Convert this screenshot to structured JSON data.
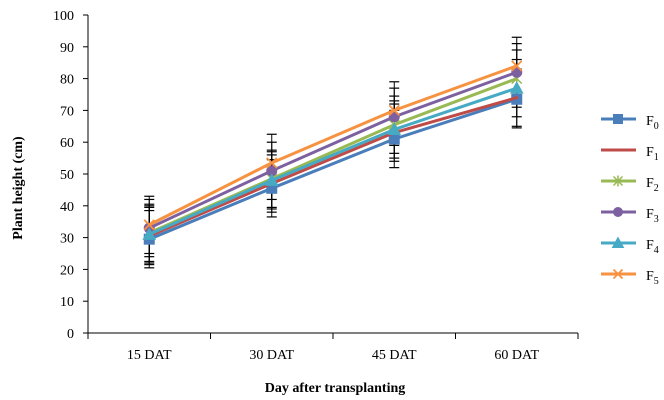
{
  "chart_data": {
    "type": "line",
    "xlabel": "Day after transplanting",
    "ylabel": "Plant height (cm)",
    "categories": [
      "15 DAT",
      "30 DAT",
      "45 DAT",
      "60 DAT"
    ],
    "ylim": [
      0,
      100
    ],
    "yticks": [
      0,
      10,
      20,
      30,
      40,
      50,
      60,
      70,
      80,
      90,
      100
    ],
    "grid": false,
    "legend_position": "right",
    "error_bars": true,
    "series": [
      {
        "name": "F0",
        "label_base": "F",
        "label_sub": "0",
        "color": "#4a7ebb",
        "marker": "square",
        "values": [
          29.5,
          45.5,
          61.0,
          73.5
        ],
        "errors": [
          9,
          9,
          9,
          9
        ]
      },
      {
        "name": "F1",
        "label_base": "F",
        "label_sub": "1",
        "color": "#be4b48",
        "marker": "none",
        "values": [
          30.5,
          47.0,
          63.0,
          74.0
        ],
        "errors": [
          9,
          9,
          9,
          9
        ]
      },
      {
        "name": "F2",
        "label_base": "F",
        "label_sub": "2",
        "color": "#98b954",
        "marker": "star",
        "values": [
          31.5,
          48.5,
          65.5,
          80.0
        ],
        "errors": [
          9,
          9,
          9,
          9
        ]
      },
      {
        "name": "F3",
        "label_base": "F",
        "label_sub": "3",
        "color": "#7d60a0",
        "marker": "circle",
        "values": [
          33.0,
          51.0,
          68.0,
          82.0
        ],
        "errors": [
          9,
          9,
          9,
          9
        ]
      },
      {
        "name": "F4",
        "label_base": "F",
        "label_sub": "4",
        "color": "#46aac4",
        "marker": "triangle",
        "values": [
          31.0,
          48.0,
          64.0,
          77.0
        ],
        "errors": [
          9,
          9,
          9,
          9
        ]
      },
      {
        "name": "F5",
        "label_base": "F",
        "label_sub": "5",
        "color": "#f69240",
        "marker": "x",
        "values": [
          34.0,
          53.5,
          70.0,
          84.0
        ],
        "errors": [
          9,
          9,
          9,
          9
        ]
      }
    ]
  }
}
